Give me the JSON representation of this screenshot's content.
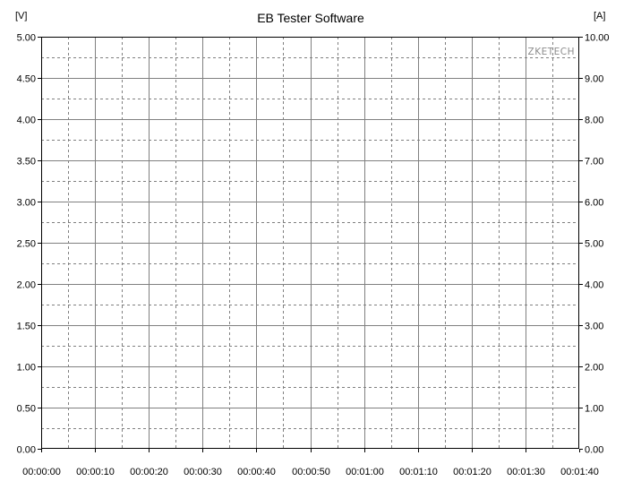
{
  "chart_data": {
    "type": "line",
    "title": "EB Tester Software",
    "watermark": "ZKETECH",
    "left_axis": {
      "unit_label": "[V]",
      "ylim": [
        0,
        5
      ],
      "ticks": [
        0,
        0.5,
        1,
        1.5,
        2,
        2.5,
        3,
        3.5,
        4,
        4.5,
        5
      ],
      "tick_labels": [
        "0.00",
        "0.50",
        "1.00",
        "1.50",
        "2.00",
        "2.50",
        "3.00",
        "3.50",
        "4.00",
        "4.50",
        "5.00"
      ]
    },
    "right_axis": {
      "unit_label": "[A]",
      "ylim": [
        0,
        10
      ],
      "ticks": [
        0,
        1,
        2,
        3,
        4,
        5,
        6,
        7,
        8,
        9,
        10
      ],
      "tick_labels": [
        "0.00",
        "1.00",
        "2.00",
        "3.00",
        "4.00",
        "5.00",
        "6.00",
        "7.00",
        "8.00",
        "9.00",
        "10.00"
      ]
    },
    "x_axis": {
      "xlim_seconds": [
        0,
        100
      ],
      "ticks_seconds": [
        0,
        10,
        20,
        30,
        40,
        50,
        60,
        70,
        80,
        90,
        100
      ],
      "tick_labels": [
        "00:00:00",
        "00:00:10",
        "00:00:20",
        "00:00:30",
        "00:00:40",
        "00:00:50",
        "00:01:00",
        "00:01:10",
        "00:01:20",
        "00:01:30",
        "00:01:40"
      ]
    },
    "grid": true,
    "series": [],
    "colors": {
      "background": "#ffffff",
      "major_grid": "#808080",
      "minor_grid": "#808080",
      "axis": "#000000",
      "watermark": "#8c8c8c"
    }
  }
}
